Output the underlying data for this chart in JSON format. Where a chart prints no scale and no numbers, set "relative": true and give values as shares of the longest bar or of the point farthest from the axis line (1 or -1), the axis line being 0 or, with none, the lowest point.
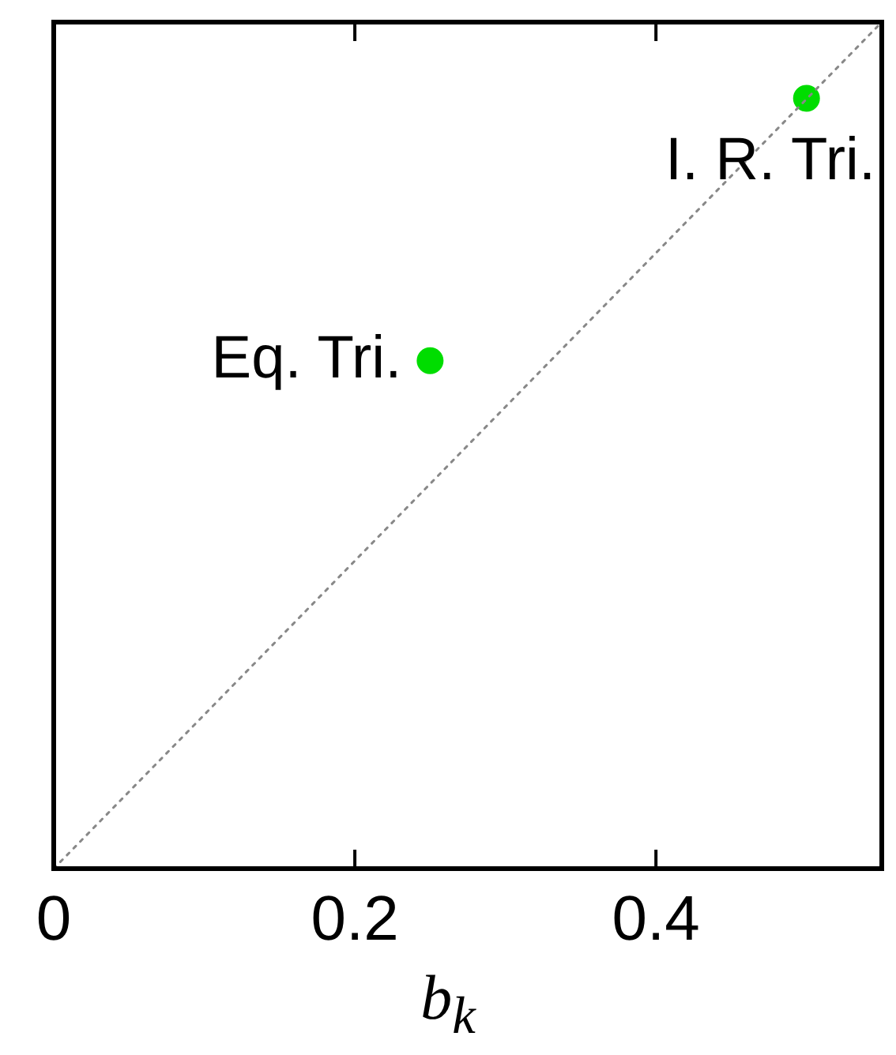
{
  "chart_data": {
    "type": "scatter",
    "xlabel": "b$_{k}$",
    "xlim": [
      0,
      0.55
    ],
    "xticks": [
      0,
      0.2,
      0.4
    ],
    "relative": true,
    "grid": false,
    "legend": false,
    "marker": "circle",
    "series": [
      {
        "type": "line",
        "color": "#888888",
        "line_style": "dotted",
        "marker": "none",
        "x": [
          0,
          0.55
        ],
        "values": [
          0,
          1
        ]
      },
      {
        "color": "#00dd00",
        "x": [
          0.25
        ],
        "values": [
          0.6
        ]
      },
      {
        "color": "#00dd00",
        "x": [
          0.5
        ],
        "values": [
          0.91
        ]
      }
    ],
    "annotations": [
      {
        "text": "Eq. Tri.",
        "x": 0.25,
        "y": 0.6
      },
      {
        "text": "I. R. Tri.",
        "x": 0.5,
        "y": 0.91
      }
    ]
  }
}
